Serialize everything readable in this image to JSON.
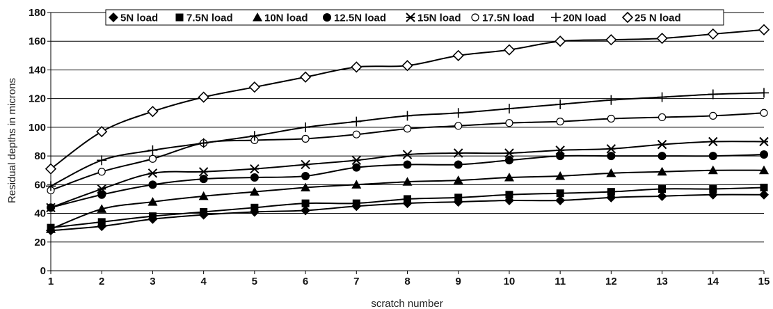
{
  "chart_data": {
    "type": "line",
    "title": "",
    "xlabel": "scratch number",
    "ylabel": "Residual depths in microns",
    "x": [
      1,
      2,
      3,
      4,
      5,
      6,
      7,
      8,
      9,
      10,
      11,
      12,
      13,
      14,
      15
    ],
    "xlim": [
      1,
      15
    ],
    "ylim": [
      0,
      180
    ],
    "yticks": [
      0,
      20,
      40,
      60,
      80,
      100,
      120,
      140,
      160,
      180
    ],
    "grid": "horizontal",
    "legend_position": "top",
    "series": [
      {
        "name": "5N load",
        "marker": "filled-diamond",
        "values": [
          28,
          31,
          36,
          39,
          41,
          42,
          45,
          47,
          48,
          49,
          49,
          51,
          52,
          53,
          53
        ]
      },
      {
        "name": "7.5N load",
        "marker": "filled-square",
        "values": [
          30,
          34,
          38,
          41,
          44,
          47,
          47,
          50,
          51,
          53,
          54,
          55,
          57,
          57,
          58
        ]
      },
      {
        "name": "10N load",
        "marker": "filled-triangle",
        "values": [
          29,
          43,
          48,
          52,
          55,
          58,
          60,
          62,
          63,
          65,
          66,
          68,
          69,
          70,
          70
        ]
      },
      {
        "name": "12.5N load",
        "marker": "filled-circle",
        "values": [
          44,
          53,
          60,
          64,
          65,
          66,
          72,
          74,
          74,
          77,
          80,
          80,
          80,
          80,
          81
        ]
      },
      {
        "name": "15N load",
        "marker": "star",
        "values": [
          44,
          57,
          68,
          69,
          71,
          74,
          77,
          81,
          82,
          82,
          84,
          85,
          88,
          90,
          90
        ]
      },
      {
        "name": "17.5N load",
        "marker": "open-circle",
        "values": [
          56,
          69,
          78,
          89,
          91,
          92,
          95,
          99,
          101,
          103,
          104,
          106,
          107,
          108,
          110
        ]
      },
      {
        "name": "20N load",
        "marker": "plus",
        "values": [
          59,
          77,
          84,
          89,
          94,
          100,
          104,
          108,
          110,
          113,
          116,
          119,
          121,
          123,
          124
        ]
      },
      {
        "name": "25 N load",
        "marker": "open-diamond",
        "values": [
          71,
          97,
          111,
          121,
          128,
          135,
          142,
          143,
          150,
          154,
          160,
          161,
          162,
          165,
          168
        ]
      }
    ]
  }
}
